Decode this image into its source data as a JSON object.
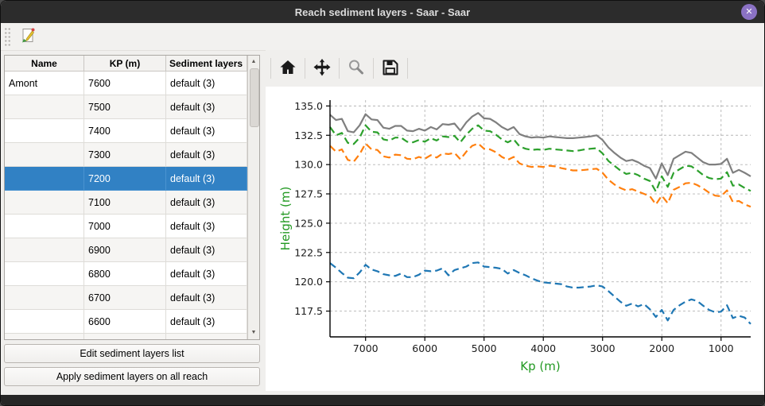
{
  "window": {
    "title": "Reach sediment layers - Saar - Saar"
  },
  "icons": {
    "close": "✕",
    "scroll_up": "▲",
    "scroll_down": "▼"
  },
  "table": {
    "columns": [
      "Name",
      "KP (m)",
      "Sediment layers"
    ],
    "selected_index": 4,
    "rows": [
      {
        "name": "Amont",
        "kp": "7600",
        "layers": "default (3)"
      },
      {
        "name": "",
        "kp": "7500",
        "layers": "default (3)"
      },
      {
        "name": "",
        "kp": "7400",
        "layers": "default (3)"
      },
      {
        "name": "",
        "kp": "7300",
        "layers": "default (3)"
      },
      {
        "name": "",
        "kp": "7200",
        "layers": "default (3)"
      },
      {
        "name": "",
        "kp": "7100",
        "layers": "default (3)"
      },
      {
        "name": "",
        "kp": "7000",
        "layers": "default (3)"
      },
      {
        "name": "",
        "kp": "6900",
        "layers": "default (3)"
      },
      {
        "name": "",
        "kp": "6800",
        "layers": "default (3)"
      },
      {
        "name": "",
        "kp": "6700",
        "layers": "default (3)"
      },
      {
        "name": "",
        "kp": "6600",
        "layers": "default (3)"
      },
      {
        "name": "",
        "kp": "",
        "layers": ""
      }
    ]
  },
  "buttons": {
    "edit": "Edit sediment layers list",
    "apply": "Apply sediment layers on all reach"
  },
  "chart_data": {
    "type": "line",
    "xlabel": "Kp (m)",
    "ylabel": "Height (m)",
    "label_color": "#229922",
    "tick_color": "#1a1a1a",
    "grid": true,
    "x_reversed": true,
    "xlim": [
      7600,
      500
    ],
    "ylim": [
      115.3,
      135.5
    ],
    "x_ticks": [
      7000,
      6000,
      5000,
      4000,
      3000,
      2000,
      1000
    ],
    "y_ticks": [
      117.5,
      120.0,
      122.5,
      125.0,
      127.5,
      130.0,
      132.5,
      135.0
    ],
    "x": [
      7600,
      7500,
      7400,
      7300,
      7200,
      7100,
      7000,
      6900,
      6800,
      6700,
      6600,
      6500,
      6400,
      6300,
      6200,
      6100,
      6000,
      5900,
      5800,
      5700,
      5600,
      5500,
      5400,
      5300,
      5200,
      5100,
      5000,
      4900,
      4800,
      4700,
      4600,
      4500,
      4400,
      4300,
      4200,
      4100,
      4000,
      3900,
      3800,
      3700,
      3600,
      3500,
      3400,
      3300,
      3200,
      3100,
      3000,
      2900,
      2800,
      2700,
      2600,
      2500,
      2400,
      2300,
      2200,
      2100,
      2000,
      1900,
      1800,
      1700,
      1600,
      1500,
      1400,
      1300,
      1200,
      1100,
      1000,
      900,
      800,
      700,
      600,
      500
    ],
    "series": [
      {
        "name": "gray-solid",
        "color": "#7f7f7f",
        "style": "solid",
        "values": [
          134.25,
          133.8,
          133.9,
          132.85,
          132.75,
          133.35,
          134.3,
          133.85,
          133.8,
          133.15,
          133.05,
          133.3,
          133.3,
          132.9,
          132.85,
          133.05,
          132.9,
          133.2,
          133.0,
          133.45,
          133.4,
          133.5,
          132.9,
          133.6,
          134.1,
          134.4,
          133.95,
          133.9,
          133.6,
          133.2,
          132.95,
          133.2,
          132.6,
          132.4,
          132.3,
          132.35,
          132.3,
          132.4,
          132.35,
          132.3,
          132.25,
          132.25,
          132.3,
          132.35,
          132.4,
          132.5,
          132.1,
          131.45,
          131.0,
          130.6,
          130.3,
          130.4,
          130.2,
          129.9,
          129.7,
          128.8,
          130.1,
          129.1,
          130.5,
          130.8,
          131.1,
          131.0,
          130.6,
          130.2,
          130.0,
          130.0,
          130.05,
          130.5,
          129.3,
          129.55,
          129.3,
          129.0
        ]
      },
      {
        "name": "green-dashed",
        "color": "#2ca02c",
        "style": "dashed",
        "values": [
          133.2,
          132.5,
          132.7,
          131.85,
          131.75,
          132.3,
          133.35,
          132.8,
          132.75,
          132.15,
          132.05,
          132.3,
          132.3,
          131.95,
          131.9,
          132.1,
          131.95,
          132.25,
          132.05,
          132.4,
          132.35,
          132.45,
          131.9,
          132.55,
          133.05,
          133.35,
          132.9,
          132.85,
          132.55,
          132.15,
          131.9,
          132.15,
          131.55,
          131.35,
          131.25,
          131.3,
          131.25,
          131.35,
          131.3,
          131.25,
          131.2,
          131.15,
          131.2,
          131.3,
          131.35,
          131.4,
          130.95,
          130.3,
          129.9,
          129.5,
          129.2,
          129.3,
          129.1,
          128.8,
          128.6,
          127.7,
          129.0,
          128.1,
          129.3,
          129.6,
          129.9,
          129.85,
          129.5,
          129.1,
          128.85,
          128.75,
          128.8,
          129.35,
          128.2,
          128.3,
          128.0,
          127.75
        ]
      },
      {
        "name": "orange-dashed",
        "color": "#ff7f0e",
        "style": "dashed",
        "values": [
          131.6,
          131.1,
          131.3,
          130.4,
          130.25,
          130.9,
          131.8,
          131.3,
          131.25,
          130.7,
          130.6,
          130.85,
          130.8,
          130.5,
          130.45,
          130.65,
          130.5,
          130.8,
          130.6,
          130.95,
          130.9,
          131.0,
          130.45,
          131.1,
          131.6,
          131.8,
          131.35,
          131.3,
          131.05,
          130.65,
          130.4,
          130.65,
          130.1,
          129.9,
          129.8,
          129.85,
          129.8,
          129.9,
          129.85,
          129.7,
          129.6,
          129.5,
          129.5,
          129.55,
          129.6,
          129.65,
          129.3,
          128.7,
          128.3,
          128.0,
          127.8,
          127.9,
          127.7,
          127.5,
          127.3,
          126.6,
          127.35,
          126.7,
          127.85,
          128.1,
          128.4,
          128.45,
          128.25,
          127.95,
          127.6,
          127.35,
          127.3,
          127.8,
          126.8,
          126.9,
          126.6,
          126.4
        ]
      },
      {
        "name": "blue-dashed",
        "color": "#1f77b4",
        "style": "dashed",
        "values": [
          121.6,
          121.2,
          120.75,
          120.35,
          120.3,
          120.8,
          121.45,
          121.05,
          120.9,
          120.65,
          120.55,
          120.5,
          120.7,
          120.4,
          120.4,
          120.6,
          120.95,
          120.9,
          120.95,
          121.15,
          120.55,
          121.0,
          121.15,
          121.3,
          121.6,
          121.65,
          121.3,
          121.25,
          121.2,
          121.1,
          120.7,
          121.0,
          120.75,
          120.55,
          120.3,
          120.1,
          119.95,
          119.9,
          119.85,
          119.8,
          119.6,
          119.5,
          119.5,
          119.55,
          119.6,
          119.7,
          119.6,
          119.2,
          118.75,
          118.3,
          117.95,
          118.15,
          117.9,
          118.1,
          117.65,
          117.0,
          117.6,
          116.7,
          117.6,
          118.0,
          118.3,
          118.5,
          118.35,
          117.95,
          117.6,
          117.4,
          117.45,
          118.0,
          116.9,
          117.1,
          116.95,
          116.4
        ]
      }
    ]
  }
}
